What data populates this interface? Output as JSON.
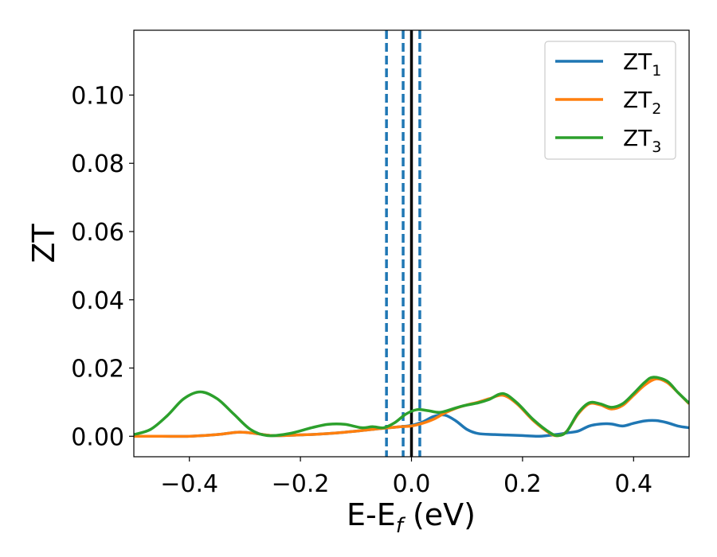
{
  "chart_data": {
    "type": "line",
    "xlabel": "E-E",
    "xlabel_sub": "f",
    "xlabel_unit": " (eV)",
    "ylabel": "ZT",
    "xlim": [
      -0.5,
      0.5
    ],
    "ylim": [
      -0.006,
      0.119
    ],
    "xticks": [
      -0.4,
      -0.2,
      0.0,
      0.2,
      0.4
    ],
    "xtick_labels": [
      "−0.4",
      "−0.2",
      "0.0",
      "0.2",
      "0.4"
    ],
    "yticks": [
      0.0,
      0.02,
      0.04,
      0.06,
      0.08,
      0.1
    ],
    "ytick_labels": [
      "0.00",
      "0.02",
      "0.04",
      "0.06",
      "0.08",
      "0.10"
    ],
    "grid": false,
    "legend_position": "top-right",
    "series": [
      {
        "name": "ZT",
        "name_sub": "1",
        "color": "#1f77b4",
        "x": [
          -0.5,
          -0.45,
          -0.4,
          -0.35,
          -0.31,
          -0.28,
          -0.25,
          -0.2,
          -0.15,
          -0.1,
          -0.06,
          -0.04,
          -0.02,
          0.0,
          0.02,
          0.04,
          0.06,
          0.08,
          0.1,
          0.12,
          0.15,
          0.2,
          0.23,
          0.26,
          0.28,
          0.3,
          0.32,
          0.34,
          0.36,
          0.38,
          0.4,
          0.42,
          0.44,
          0.46,
          0.48,
          0.5
        ],
        "y": [
          0.0,
          0.0,
          0.0,
          0.0005,
          0.0012,
          0.0008,
          0.0002,
          0.0004,
          0.0008,
          0.0015,
          0.0022,
          0.0025,
          0.0028,
          0.0032,
          0.0042,
          0.0058,
          0.0062,
          0.0045,
          0.002,
          0.0008,
          0.0005,
          0.0002,
          0.0,
          0.0005,
          0.001,
          0.0015,
          0.003,
          0.0036,
          0.0036,
          0.003,
          0.0038,
          0.0045,
          0.0046,
          0.004,
          0.003,
          0.0025
        ]
      },
      {
        "name": "ZT",
        "name_sub": "2",
        "color": "#ff7f0e",
        "x": [
          -0.5,
          -0.45,
          -0.4,
          -0.35,
          -0.31,
          -0.28,
          -0.25,
          -0.2,
          -0.15,
          -0.1,
          -0.06,
          -0.04,
          -0.02,
          0.0,
          0.02,
          0.04,
          0.06,
          0.08,
          0.1,
          0.12,
          0.14,
          0.165,
          0.19,
          0.22,
          0.25,
          0.265,
          0.28,
          0.3,
          0.32,
          0.34,
          0.36,
          0.38,
          0.4,
          0.42,
          0.44,
          0.46,
          0.48,
          0.5
        ],
        "y": [
          0.0,
          0.0,
          0.0,
          0.0005,
          0.0012,
          0.0008,
          0.0002,
          0.0004,
          0.0008,
          0.0015,
          0.0022,
          0.0025,
          0.0028,
          0.003,
          0.0038,
          0.005,
          0.0068,
          0.0082,
          0.0092,
          0.01,
          0.011,
          0.012,
          0.0095,
          0.0045,
          0.0008,
          0.0002,
          0.0015,
          0.0065,
          0.0095,
          0.0092,
          0.008,
          0.009,
          0.012,
          0.015,
          0.0168,
          0.0158,
          0.0128,
          0.0095
        ]
      },
      {
        "name": "ZT",
        "name_sub": "3",
        "color": "#2ca02c",
        "x": [
          -0.5,
          -0.47,
          -0.44,
          -0.41,
          -0.38,
          -0.35,
          -0.32,
          -0.29,
          -0.26,
          -0.22,
          -0.18,
          -0.15,
          -0.12,
          -0.09,
          -0.07,
          -0.05,
          -0.03,
          -0.01,
          0.01,
          0.03,
          0.05,
          0.07,
          0.09,
          0.12,
          0.14,
          0.165,
          0.19,
          0.22,
          0.25,
          0.265,
          0.28,
          0.3,
          0.32,
          0.34,
          0.36,
          0.38,
          0.4,
          0.42,
          0.435,
          0.46,
          0.48,
          0.5
        ],
        "y": [
          0.0005,
          0.002,
          0.006,
          0.011,
          0.013,
          0.011,
          0.0065,
          0.002,
          0.0002,
          0.0008,
          0.0025,
          0.0035,
          0.0035,
          0.0025,
          0.0028,
          0.0025,
          0.004,
          0.0065,
          0.0078,
          0.0075,
          0.007,
          0.0078,
          0.0088,
          0.0098,
          0.0108,
          0.0125,
          0.0098,
          0.0048,
          0.001,
          0.0002,
          0.0015,
          0.0068,
          0.0098,
          0.0095,
          0.0085,
          0.0095,
          0.0125,
          0.0158,
          0.0173,
          0.0162,
          0.0128,
          0.0097
        ]
      }
    ],
    "vlines": [
      {
        "x": 0.0,
        "color": "#000000",
        "style": "solid"
      },
      {
        "x": -0.045,
        "color": "#1f77b4",
        "style": "dashed"
      },
      {
        "x": -0.015,
        "color": "#1f77b4",
        "style": "dashed"
      },
      {
        "x": 0.015,
        "color": "#1f77b4",
        "style": "dashed"
      }
    ]
  }
}
